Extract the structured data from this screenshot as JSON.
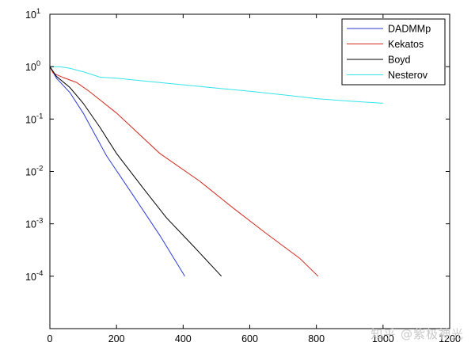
{
  "chart_data": {
    "type": "line",
    "title": "",
    "xlabel": "",
    "ylabel": "",
    "xlim": [
      0,
      1200
    ],
    "ylim": [
      1e-05,
      10
    ],
    "yscale": "log",
    "grid": false,
    "legend_position": "top-right",
    "x_ticks": [
      0,
      200,
      400,
      600,
      800,
      1000,
      1200
    ],
    "y_ticks": [
      {
        "value": 10,
        "mantissa": "10",
        "exponent": "1"
      },
      {
        "value": 1,
        "mantissa": "10",
        "exponent": "0"
      },
      {
        "value": 0.1,
        "mantissa": "10",
        "exponent": "-1"
      },
      {
        "value": 0.01,
        "mantissa": "10",
        "exponent": "-2"
      },
      {
        "value": 0.001,
        "mantissa": "10",
        "exponent": "-3"
      },
      {
        "value": 0.0001,
        "mantissa": "10",
        "exponent": "-4"
      }
    ],
    "series": [
      {
        "name": "DADMMp",
        "color": "#2b3bd6",
        "x": [
          0,
          20,
          60,
          100,
          170,
          250,
          330,
          405
        ],
        "y": [
          1.0,
          0.6,
          0.32,
          0.13,
          0.02,
          0.0035,
          0.0006,
          0.0001
        ]
      },
      {
        "name": "Kekatos",
        "color": "#d42a1e",
        "x": [
          0,
          10,
          40,
          80,
          120,
          200,
          330,
          450,
          550,
          650,
          750,
          805
        ],
        "y": [
          1.0,
          0.75,
          0.62,
          0.5,
          0.33,
          0.13,
          0.022,
          0.0065,
          0.002,
          0.00065,
          0.00022,
          0.0001
        ]
      },
      {
        "name": "Boyd",
        "color": "#000000",
        "x": [
          0,
          20,
          60,
          100,
          150,
          200,
          280,
          350,
          430,
          515
        ],
        "y": [
          1.0,
          0.65,
          0.4,
          0.2,
          0.07,
          0.022,
          0.0048,
          0.0013,
          0.00038,
          0.0001
        ]
      },
      {
        "name": "Nesterov",
        "color": "#35e4ea",
        "x": [
          0,
          30,
          60,
          100,
          150,
          200,
          300,
          400,
          500,
          600,
          700,
          800,
          900,
          1000
        ],
        "y": [
          1.0,
          1.0,
          0.93,
          0.8,
          0.63,
          0.6,
          0.52,
          0.45,
          0.39,
          0.34,
          0.29,
          0.245,
          0.22,
          0.2
        ]
      }
    ]
  },
  "watermark": "知乎 @紫极神光"
}
